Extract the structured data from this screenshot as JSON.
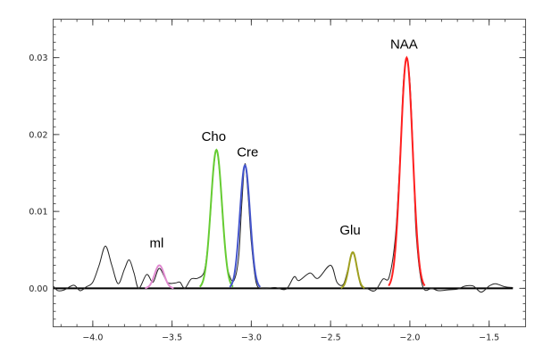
{
  "chart_data": {
    "type": "line",
    "title": "",
    "xlabel": "",
    "ylabel": "",
    "xlim": [
      -4.25,
      -1.27
    ],
    "ylim": [
      -0.005,
      0.035
    ],
    "grid": false,
    "xticks": [
      "-4.0",
      "-3.5",
      "-3.0",
      "-2.5",
      "-2.0",
      "-1.5"
    ],
    "xtick_values": [
      -4.0,
      -3.5,
      -3.0,
      -2.5,
      -2.0,
      -1.5
    ],
    "yticks": [
      "0.00",
      "0.01",
      "0.02",
      "0.03"
    ],
    "ytick_values": [
      0.0,
      0.01,
      0.02,
      0.03
    ],
    "baseline": {
      "y": 0,
      "x_range": [
        -4.25,
        -1.35
      ],
      "color": "#000000"
    },
    "spectrum": {
      "color": "#222222",
      "x": [
        -4.25,
        -4.22,
        -4.18,
        -4.12,
        -4.08,
        -4.04,
        -4.0,
        -3.96,
        -3.92,
        -3.88,
        -3.84,
        -3.8,
        -3.77,
        -3.74,
        -3.71,
        -3.66,
        -3.62,
        -3.58,
        -3.53,
        -3.48,
        -3.45,
        -3.42,
        -3.38,
        -3.34,
        -3.3,
        -3.28,
        -3.26,
        -3.24,
        -3.22,
        -3.2,
        -3.18,
        -3.16,
        -3.14,
        -3.11,
        -3.08,
        -3.06,
        -3.04,
        -3.02,
        -3.0,
        -2.97,
        -2.93,
        -2.85,
        -2.78,
        -2.73,
        -2.7,
        -2.63,
        -2.58,
        -2.5,
        -2.46,
        -2.42,
        -2.39,
        -2.36,
        -2.33,
        -2.31,
        -2.27,
        -2.22,
        -2.17,
        -2.13,
        -2.09,
        -2.06,
        -2.04,
        -2.02,
        -2.0,
        -1.98,
        -1.96,
        -1.92,
        -1.86,
        -1.82,
        -1.76,
        -1.7,
        -1.65,
        -1.6,
        -1.55,
        -1.5,
        -1.46,
        -1.4,
        -1.35
      ],
      "y": [
        0.0003,
        -0.0003,
        -0.0002,
        0.0004,
        -0.0003,
        0.0002,
        0.0008,
        0.003,
        0.0055,
        0.003,
        0.0006,
        0.0025,
        0.0037,
        0.002,
        0.0,
        0.0018,
        0.0008,
        0.0026,
        0.0008,
        0.0007,
        0.0008,
        0.0,
        0.0012,
        0.0013,
        0.002,
        0.0045,
        0.009,
        0.015,
        0.018,
        0.015,
        0.009,
        0.004,
        0.0018,
        0.001,
        0.004,
        0.011,
        0.0162,
        0.012,
        0.006,
        0.0008,
        0.0,
        0.0001,
        -0.0001,
        0.0015,
        0.001,
        0.002,
        0.0013,
        0.003,
        0.0008,
        0.0005,
        0.0025,
        0.0046,
        0.0025,
        0.0004,
        0.0,
        -0.0003,
        0.0012,
        0.0015,
        0.007,
        0.018,
        0.027,
        0.0297,
        0.027,
        0.018,
        0.007,
        0.0003,
        0.0,
        -0.0003,
        -0.0002,
        -0.0001,
        0.0003,
        0.0003,
        -0.0005,
        0.0003,
        0.0006,
        0.0002,
        0.0001
      ]
    },
    "series": [
      {
        "name": "mI",
        "center": -3.58,
        "amplitude": 0.003,
        "sigma": 0.03,
        "color": "#e08ad0"
      },
      {
        "name": "Cho",
        "center": -3.22,
        "amplitude": 0.018,
        "sigma": 0.035,
        "color": "#66cc33"
      },
      {
        "name": "Cre",
        "center": -3.04,
        "amplitude": 0.016,
        "sigma": 0.032,
        "color": "#4455cc"
      },
      {
        "name": "Glu",
        "center": -2.36,
        "amplitude": 0.0047,
        "sigma": 0.025,
        "color": "#a0a020"
      },
      {
        "name": "NAA",
        "center": -2.02,
        "amplitude": 0.03,
        "sigma": 0.038,
        "color": "#ff2020"
      }
    ]
  }
}
